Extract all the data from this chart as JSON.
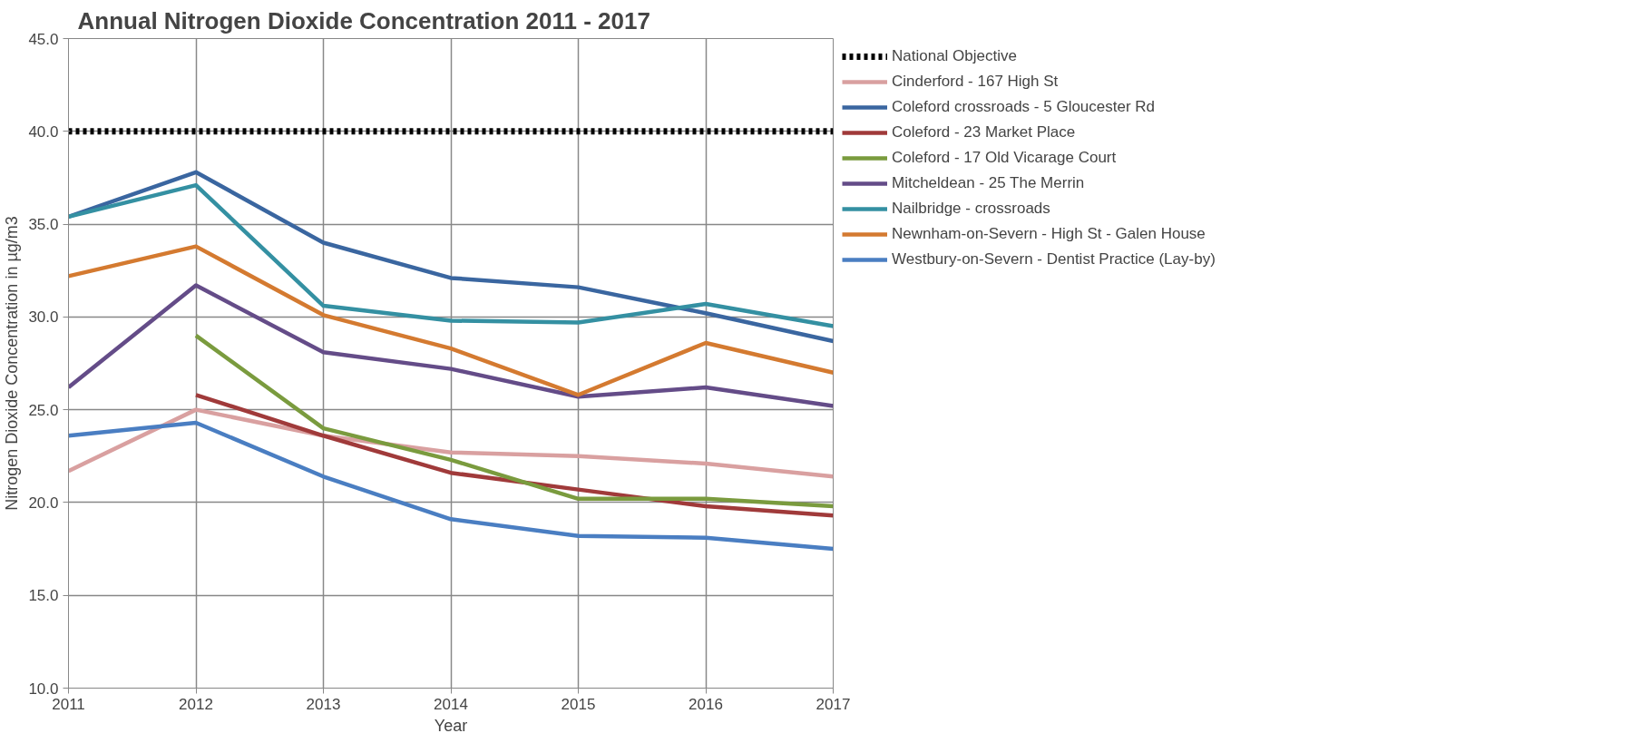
{
  "chart_data": {
    "type": "line",
    "title": "Annual Nitrogen Dioxide Concentration  2011 - 2017",
    "xlabel": "Year",
    "ylabel": "Nitrogen Dioxide Concentration in µg/m3",
    "x": [
      2011,
      2012,
      2013,
      2014,
      2015,
      2016,
      2017
    ],
    "xlim": [
      2011,
      2017
    ],
    "xticks": [
      2011,
      2012,
      2013,
      2014,
      2015,
      2016,
      2017
    ],
    "ylim": [
      10,
      45
    ],
    "yticks": [
      {
        "value": 10,
        "label": "10.0"
      },
      {
        "value": 15,
        "label": "15.0"
      },
      {
        "value": 20,
        "label": "20.0"
      },
      {
        "value": 25,
        "label": "25.0"
      },
      {
        "value": 30,
        "label": "30.0"
      },
      {
        "value": 35,
        "label": "35.0"
      },
      {
        "value": 40,
        "label": "40.0"
      },
      {
        "value": 45,
        "label": "45.0"
      }
    ],
    "grid": true,
    "legend": "right",
    "marker": "none",
    "line_style": "solid",
    "series": [
      {
        "name": "National Objective",
        "color": "#000000",
        "line_style": "dotted",
        "values": [
          40,
          40,
          40,
          40,
          40,
          40,
          40
        ]
      },
      {
        "name": "Cinderford - 167 High St",
        "color": "#d9a0a0",
        "values": [
          21.7,
          25.0,
          23.6,
          22.7,
          22.5,
          22.1,
          21.4
        ]
      },
      {
        "name": "Coleford crossroads - 5 Gloucester Rd",
        "color": "#3a66a0",
        "values": [
          35.4,
          37.8,
          34.0,
          32.1,
          31.6,
          30.2,
          28.7
        ]
      },
      {
        "name": "Coleford - 23 Market Place",
        "color": "#a03a3a",
        "values": [
          null,
          25.8,
          23.6,
          21.6,
          20.7,
          19.8,
          19.3
        ]
      },
      {
        "name": "Coleford - 17 Old Vicarage Court",
        "color": "#7a9b3e",
        "values": [
          null,
          29.0,
          24.0,
          22.3,
          20.2,
          20.2,
          19.8
        ]
      },
      {
        "name": "Mitcheldean - 25 The Merrin",
        "color": "#644c88",
        "values": [
          26.2,
          31.7,
          28.1,
          27.2,
          25.7,
          26.2,
          25.2
        ]
      },
      {
        "name": "Nailbridge - crossroads",
        "color": "#3490a2",
        "values": [
          35.4,
          37.1,
          30.6,
          29.8,
          29.7,
          30.7,
          29.5
        ]
      },
      {
        "name": "Newnham-on-Severn - High St - Galen House",
        "color": "#d47a30",
        "values": [
          32.2,
          33.8,
          30.1,
          28.3,
          25.8,
          28.6,
          27.0
        ]
      },
      {
        "name": "Westbury-on-Severn - Dentist Practice (Lay-by)",
        "color": "#4a7ec2",
        "values": [
          23.6,
          24.3,
          21.4,
          19.1,
          18.2,
          18.1,
          17.5
        ]
      }
    ]
  }
}
